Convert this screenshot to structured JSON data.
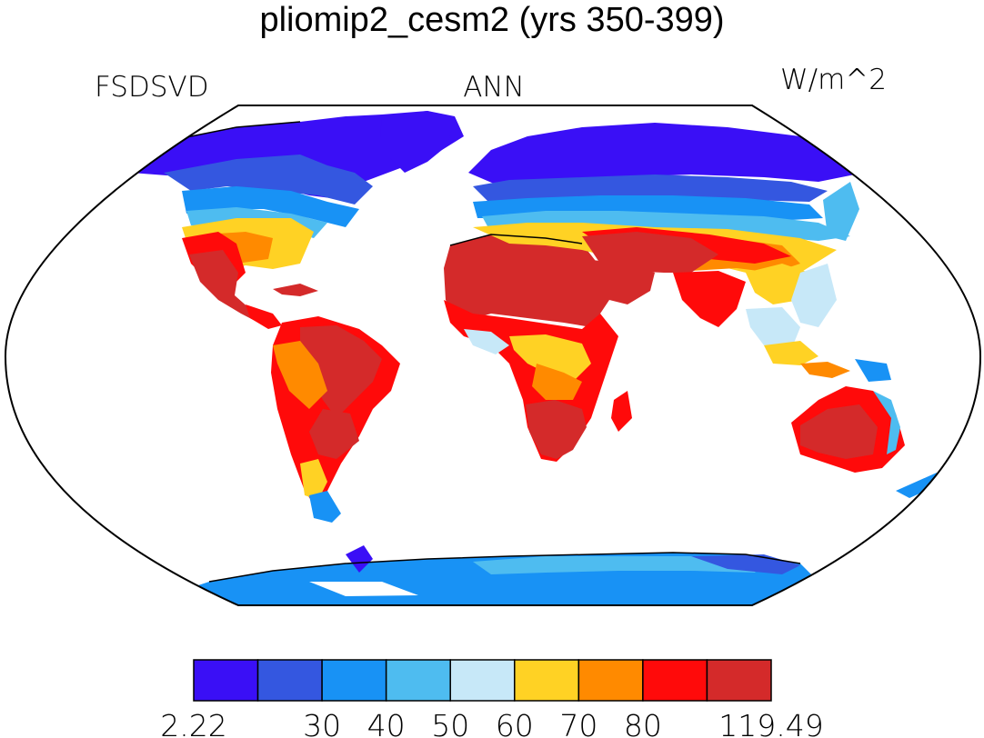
{
  "title": "pliomip2_cesm2 (yrs 350-399)",
  "left_label": "FSDSVD",
  "center_label": "ANN",
  "right_label": "W/m^2",
  "colorbar": {
    "colors": [
      "#3a0ff6",
      "#3457e0",
      "#1892f5",
      "#4ebcf0",
      "#c7e8f8",
      "#ffd224",
      "#ff8a00",
      "#ff0a0a",
      "#d42a2a"
    ],
    "tick_labels": [
      "2.22",
      "30",
      "40",
      "50",
      "60",
      "70",
      "80",
      "119.49"
    ]
  }
}
